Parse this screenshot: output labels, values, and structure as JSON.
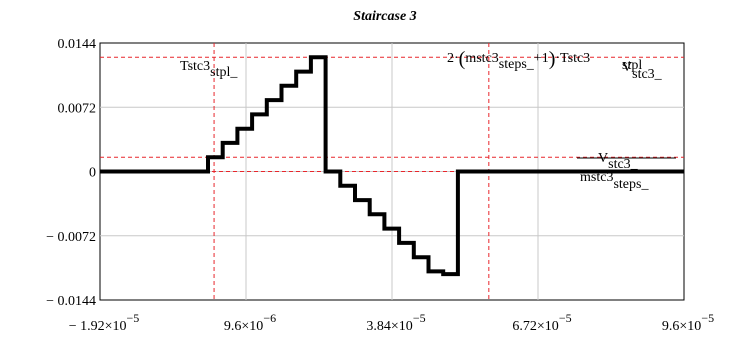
{
  "chart_data": {
    "type": "line",
    "title": "Staircase 3",
    "xlim": [
      -1.92e-05,
      9.6e-05
    ],
    "ylim": [
      -0.0144,
      0.0144
    ],
    "x_tick_labels": [
      {
        "mant": "− 1.92×10",
        "exp": "−5"
      },
      {
        "mant": "9.6×10",
        "exp": "−6"
      },
      {
        "mant": "3.84×10",
        "exp": "−5"
      },
      {
        "mant": "6.72×10",
        "exp": "−5"
      },
      {
        "mant": "9.6×10",
        "exp": "−5"
      }
    ],
    "x_ticks": [
      -1.92e-05,
      9.6e-06,
      3.84e-05,
      6.72e-05,
      9.6e-05
    ],
    "y_ticks": [
      0.0144,
      0.0072,
      0,
      -0.0072,
      -0.0144
    ],
    "y_tick_labels": [
      "0.0144",
      "0.0072",
      "0",
      "− 0.0072",
      "− 0.0144"
    ],
    "series": [
      {
        "color": "#000000",
        "points": [
          [
            -1.92e-05,
            0
          ],
          [
            2.1e-06,
            0
          ],
          [
            2.1e-06,
            0.0016
          ],
          [
            5e-06,
            0.0016
          ],
          [
            5e-06,
            0.0032
          ],
          [
            7.9e-06,
            0.0032
          ],
          [
            7.9e-06,
            0.0048
          ],
          [
            1.08e-05,
            0.0048
          ],
          [
            1.08e-05,
            0.0064
          ],
          [
            1.37e-05,
            0.0064
          ],
          [
            1.37e-05,
            0.008
          ],
          [
            1.66e-05,
            0.008
          ],
          [
            1.66e-05,
            0.0096
          ],
          [
            1.95e-05,
            0.0096
          ],
          [
            1.95e-05,
            0.0112
          ],
          [
            2.24e-05,
            0.0112
          ],
          [
            2.24e-05,
            0.0128
          ],
          [
            2.53e-05,
            0.0128
          ],
          [
            2.53e-05,
            0.0
          ],
          [
            2.82e-05,
            0.0
          ],
          [
            2.82e-05,
            -0.0016
          ],
          [
            3.11e-05,
            -0.0016
          ],
          [
            3.11e-05,
            -0.0032
          ],
          [
            3.4e-05,
            -0.0032
          ],
          [
            3.4e-05,
            -0.0048
          ],
          [
            3.69e-05,
            -0.0048
          ],
          [
            3.69e-05,
            -0.0064
          ],
          [
            3.98e-05,
            -0.0064
          ],
          [
            3.98e-05,
            -0.008
          ],
          [
            4.27e-05,
            -0.008
          ],
          [
            4.27e-05,
            -0.0096
          ],
          [
            4.56e-05,
            -0.0096
          ],
          [
            4.56e-05,
            -0.0112
          ],
          [
            4.85e-05,
            -0.0112
          ],
          [
            4.85e-05,
            -0.0115
          ],
          [
            5.14e-05,
            -0.0115
          ],
          [
            5.14e-05,
            0
          ],
          [
            9.6e-05,
            0
          ]
        ]
      }
    ],
    "markers": {
      "horizontal": [
        {
          "y": 0.0128,
          "label": "Vstc3_"
        },
        {
          "y": 0.0016,
          "label": "Vstc3_ / mstc3steps_"
        },
        {
          "y": 0,
          "label": ""
        }
      ],
      "vertical": [
        {
          "x": 3.3e-06,
          "label": "Tstc3stpl_"
        },
        {
          "x": 5.75e-05,
          "label": "2·(mstc3steps_ +1)·Tstc3stpl"
        }
      ],
      "color": "#e8262b"
    },
    "annotations": {
      "vert1": {
        "main": "Tstc3",
        "sub": "stpl_"
      },
      "vert2": {
        "pre": "2·",
        "open": "(",
        "main": "mstc3",
        "sub": "steps_",
        "plus": "+1",
        "close": ")",
        "dot": "·",
        "main2": "Tstc3",
        "sub2": "stpl"
      },
      "hline_top": {
        "main": "V",
        "sub": "stc3_"
      },
      "ratio": {
        "num_main": "V",
        "num_sub": "stc3_",
        "den_main": "mstc3",
        "den_sub": "steps_"
      }
    },
    "grid": true
  }
}
